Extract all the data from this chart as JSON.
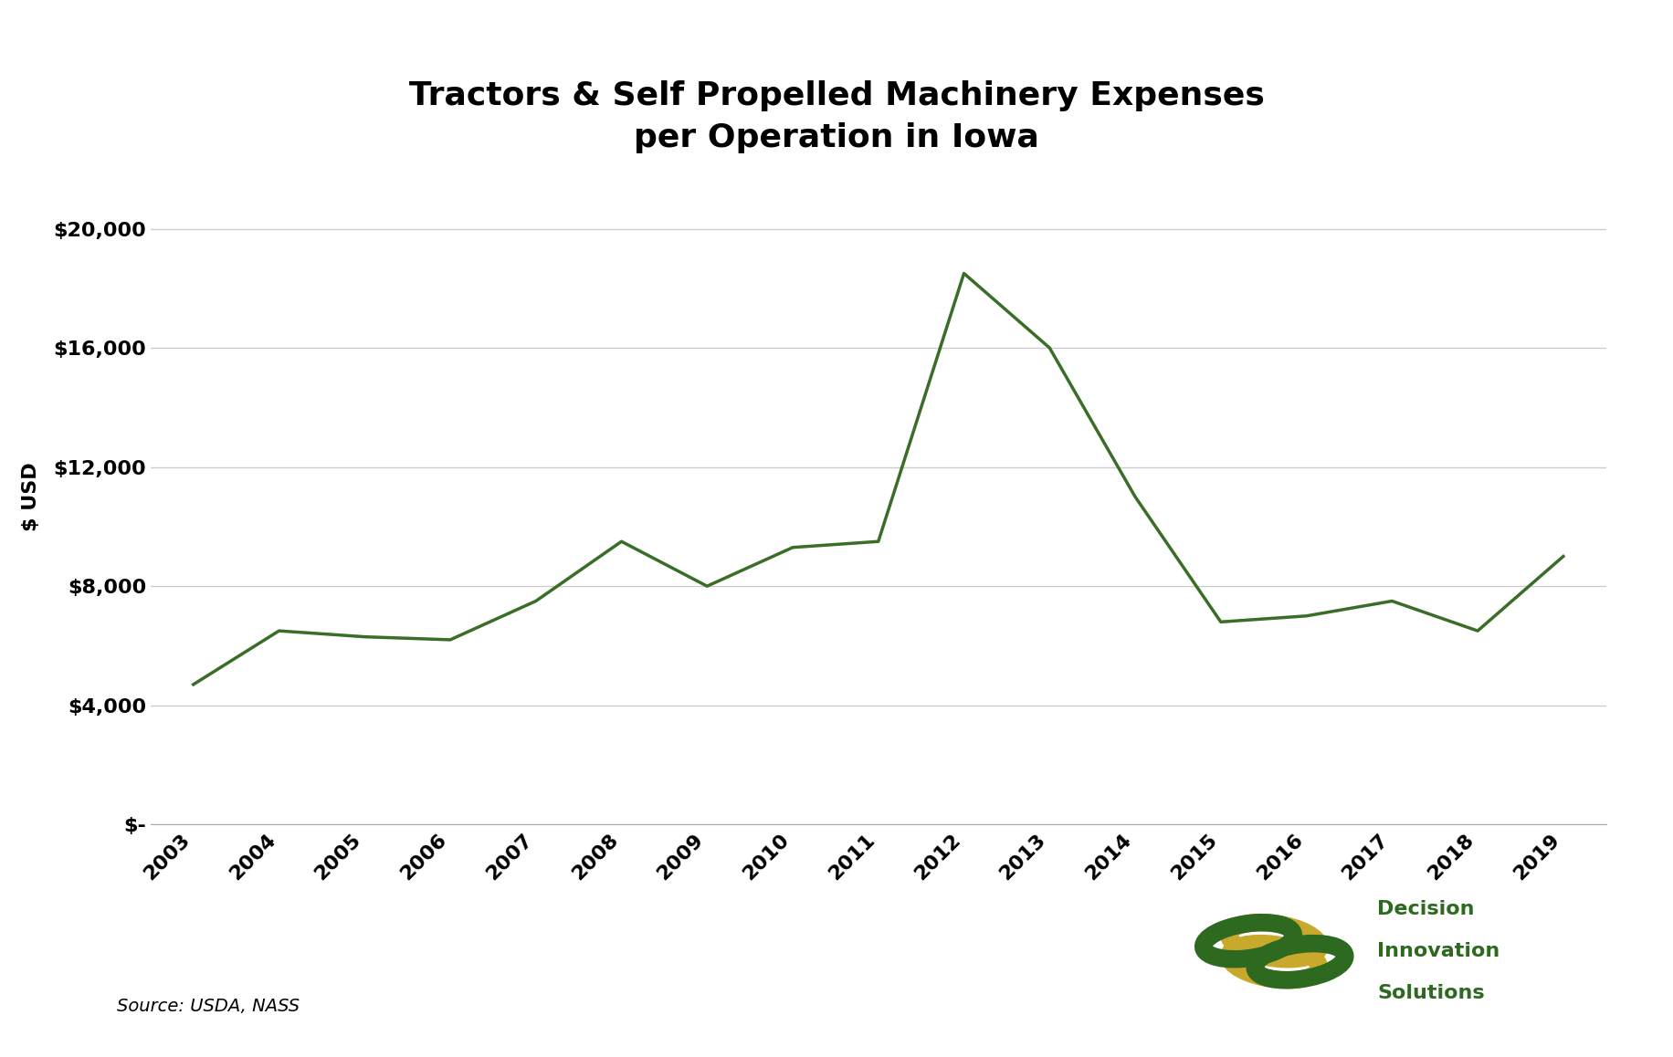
{
  "title_line1": "Tractors & Self Propelled Machinery Expenses",
  "title_line2": "per Operation in Iowa",
  "ylabel": "$ USD",
  "years": [
    2003,
    2004,
    2005,
    2006,
    2007,
    2008,
    2009,
    2010,
    2011,
    2012,
    2013,
    2014,
    2015,
    2016,
    2017,
    2018,
    2019
  ],
  "values": [
    4700,
    6500,
    6300,
    6200,
    7500,
    9500,
    8000,
    9300,
    9500,
    18500,
    16000,
    11000,
    6800,
    7000,
    7500,
    6500,
    9000
  ],
  "line_color": "#3a6e28",
  "line_width": 2.5,
  "background_color": "#ffffff",
  "grid_color": "#cccccc",
  "ylim": [
    0,
    22000
  ],
  "yticks": [
    0,
    4000,
    8000,
    12000,
    16000,
    20000
  ],
  "ytick_labels": [
    "$-",
    "$4,000",
    "$8,000",
    "$12,000",
    "$16,000",
    "$20,000"
  ],
  "source_text": "Source: USDA, NASS",
  "title_fontsize": 26,
  "ylabel_fontsize": 16,
  "tick_fontsize": 16,
  "source_fontsize": 14,
  "logo_text_color": "#2d6a1f",
  "logo_gold_color": "#c9a92c"
}
